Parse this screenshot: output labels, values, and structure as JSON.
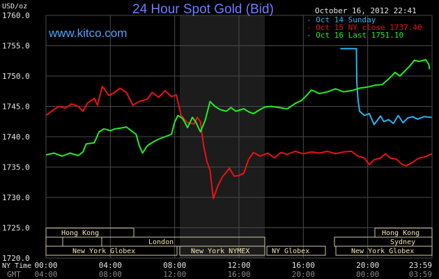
{
  "header": {
    "title": "24 Hour Spot Gold (Bid)",
    "website": "www.kitco.com",
    "timestamp": "October 16, 2012 22:41"
  },
  "axis_labels": {
    "units": "USD/oz",
    "ny_time": "NY Time",
    "gmt": "GMT"
  },
  "colors": {
    "background": "#000000",
    "grid": "#4a4a4a",
    "title": "#6f7dff",
    "website": "#4aa3ff",
    "series_oct14": "#2ab4ee",
    "series_oct15": "#ee1111",
    "series_oct16": "#22ee22",
    "ny_shade": "#1c1c1c",
    "session_box": "#cfc9a3"
  },
  "sessions": {
    "row1": [
      "Hong Kong",
      "Hong Kong"
    ],
    "row2": [
      "London",
      "Sydney"
    ],
    "row3": [
      "New York Globex",
      "New York NYMEX",
      "NY Globex",
      "New York Globex"
    ]
  },
  "chart_data": {
    "type": "line",
    "title": "24 Hour Spot Gold (Bid)",
    "ylabel": "USD/oz",
    "ylim": [
      1720,
      1760
    ],
    "xlim": [
      0,
      24
    ],
    "yticks": [
      "1760.0",
      "1755.0",
      "1750.0",
      "1745.0",
      "1740.0",
      "1735.0",
      "1730.0",
      "1725.0",
      "1720.0"
    ],
    "xticks_ny": [
      "00:00",
      "04:00",
      "08:00",
      "12:00",
      "16:00",
      "20:00",
      "23:59"
    ],
    "xticks_gmt": [
      "04:00",
      "08:00",
      "12:00",
      "16:00",
      "20:00",
      "00:00",
      "03:59"
    ],
    "grid": true,
    "legend_position": "top-right",
    "series": [
      {
        "name": "Oct 14 Sunday",
        "color": "#2ab4ee",
        "points": [
          [
            18.3,
            1754.5
          ],
          [
            19.3,
            1754.5
          ],
          [
            19.32,
            1749
          ],
          [
            19.4,
            1746
          ],
          [
            19.5,
            1744.2
          ],
          [
            19.8,
            1743.5
          ],
          [
            20.1,
            1743.8
          ],
          [
            20.4,
            1742
          ],
          [
            20.8,
            1743.4
          ],
          [
            21.0,
            1742.5
          ],
          [
            21.3,
            1742.8
          ],
          [
            21.6,
            1742.2
          ],
          [
            21.9,
            1743.5
          ],
          [
            22.2,
            1742.3
          ],
          [
            22.5,
            1743.1
          ],
          [
            22.8,
            1743.3
          ],
          [
            23.1,
            1742.9
          ],
          [
            23.5,
            1743.3
          ],
          [
            23.98,
            1743.2
          ]
        ]
      },
      {
        "name": "Oct 15 NY close",
        "value_label": "1737.40",
        "color": "#ee1111",
        "points": [
          [
            0,
            1743.5
          ],
          [
            0.4,
            1744.3
          ],
          [
            0.8,
            1745
          ],
          [
            1.2,
            1744.7
          ],
          [
            1.6,
            1745.4
          ],
          [
            2.0,
            1745
          ],
          [
            2.3,
            1744.2
          ],
          [
            2.6,
            1745.6
          ],
          [
            3.0,
            1746.3
          ],
          [
            3.2,
            1745.2
          ],
          [
            3.5,
            1748.3
          ],
          [
            3.9,
            1746.8
          ],
          [
            4.2,
            1747.2
          ],
          [
            4.6,
            1748
          ],
          [
            5.0,
            1747.3
          ],
          [
            5.4,
            1745.2
          ],
          [
            5.8,
            1745.8
          ],
          [
            6.3,
            1746.2
          ],
          [
            6.6,
            1747.3
          ],
          [
            7.0,
            1746.5
          ],
          [
            7.4,
            1747.6
          ],
          [
            7.8,
            1746.6
          ],
          [
            8.1,
            1746.9
          ],
          [
            8.4,
            1743.5
          ],
          [
            8.8,
            1742.3
          ],
          [
            9.2,
            1742.1
          ],
          [
            9.4,
            1743.2
          ],
          [
            9.6,
            1742.5
          ],
          [
            9.8,
            1738.5
          ],
          [
            10.0,
            1736.0
          ],
          [
            10.2,
            1734.5
          ],
          [
            10.4,
            1729.8
          ],
          [
            10.7,
            1732
          ],
          [
            11.0,
            1733.5
          ],
          [
            11.4,
            1734.8
          ],
          [
            11.7,
            1733.5
          ],
          [
            12.0,
            1733.6
          ],
          [
            12.3,
            1734.0
          ],
          [
            12.6,
            1736.3
          ],
          [
            12.9,
            1737.4
          ],
          [
            13.3,
            1736.8
          ],
          [
            13.8,
            1737.3
          ],
          [
            14.2,
            1736.5
          ],
          [
            14.6,
            1737.4
          ],
          [
            15.0,
            1737.1
          ],
          [
            15.5,
            1737.6
          ],
          [
            16.0,
            1737.2
          ],
          [
            16.5,
            1737.5
          ],
          [
            17.0,
            1737.3
          ],
          [
            17.5,
            1737.6
          ],
          [
            18.0,
            1737.2
          ],
          [
            18.5,
            1737.5
          ],
          [
            19.0,
            1737.6
          ],
          [
            19.4,
            1736.8
          ],
          [
            19.8,
            1736.5
          ],
          [
            20.1,
            1735.4
          ],
          [
            20.4,
            1736.2
          ],
          [
            20.8,
            1736.5
          ],
          [
            21.1,
            1737.2
          ],
          [
            21.4,
            1736.5
          ],
          [
            21.8,
            1736.3
          ],
          [
            22.1,
            1735.5
          ],
          [
            22.4,
            1735.2
          ],
          [
            22.8,
            1735.8
          ],
          [
            23.2,
            1736.5
          ],
          [
            23.6,
            1736.7
          ],
          [
            23.98,
            1737.2
          ]
        ]
      },
      {
        "name": "Oct 16 Last",
        "value_label": "1751.10",
        "color": "#22ee22",
        "points": [
          [
            0,
            1737
          ],
          [
            0.5,
            1737.3
          ],
          [
            1.0,
            1736.8
          ],
          [
            1.5,
            1737.3
          ],
          [
            2.0,
            1736.9
          ],
          [
            2.3,
            1737.5
          ],
          [
            2.5,
            1738.8
          ],
          [
            3.0,
            1739
          ],
          [
            3.3,
            1740.8
          ],
          [
            3.6,
            1741.3
          ],
          [
            4.0,
            1741
          ],
          [
            4.3,
            1741.3
          ],
          [
            4.6,
            1741.4
          ],
          [
            5.0,
            1741.6
          ],
          [
            5.3,
            1741
          ],
          [
            5.6,
            1740.4
          ],
          [
            5.8,
            1738.5
          ],
          [
            6.0,
            1737.3
          ],
          [
            6.3,
            1738.5
          ],
          [
            6.7,
            1739.2
          ],
          [
            7.0,
            1739.6
          ],
          [
            7.4,
            1740
          ],
          [
            7.8,
            1740.4
          ],
          [
            8.0,
            1742.4
          ],
          [
            8.2,
            1743.5
          ],
          [
            8.5,
            1743
          ],
          [
            8.8,
            1741.5
          ],
          [
            9.1,
            1743.2
          ],
          [
            9.3,
            1742.5
          ],
          [
            9.6,
            1740.8
          ],
          [
            9.9,
            1742.7
          ],
          [
            10.2,
            1745.8
          ],
          [
            10.5,
            1745
          ],
          [
            10.8,
            1744.5
          ],
          [
            11.2,
            1744.2
          ],
          [
            11.5,
            1744.8
          ],
          [
            11.8,
            1744.2
          ],
          [
            12.3,
            1744.6
          ],
          [
            12.6,
            1744.1
          ],
          [
            12.9,
            1743.8
          ],
          [
            13.2,
            1744.3
          ],
          [
            13.6,
            1744.9
          ],
          [
            14.0,
            1745
          ],
          [
            14.5,
            1744.8
          ],
          [
            15.0,
            1744.6
          ],
          [
            15.5,
            1745.5
          ],
          [
            15.9,
            1746
          ],
          [
            16.2,
            1746.8
          ],
          [
            16.5,
            1747.7
          ],
          [
            17.0,
            1747.1
          ],
          [
            17.5,
            1747.4
          ],
          [
            18.0,
            1747.9
          ],
          [
            18.5,
            1747.4
          ],
          [
            19.0,
            1747.6
          ],
          [
            19.5,
            1748
          ],
          [
            20.0,
            1748.2
          ],
          [
            20.5,
            1748.5
          ],
          [
            20.9,
            1748.6
          ],
          [
            21.3,
            1749.5
          ],
          [
            21.7,
            1750.6
          ],
          [
            22.0,
            1750
          ],
          [
            22.3,
            1750.8
          ],
          [
            22.6,
            1751.6
          ],
          [
            22.9,
            1752.6
          ],
          [
            23.2,
            1752.4
          ],
          [
            23.6,
            1752.7
          ],
          [
            23.8,
            1751.9
          ],
          [
            23.85,
            1751.1
          ]
        ]
      }
    ]
  }
}
